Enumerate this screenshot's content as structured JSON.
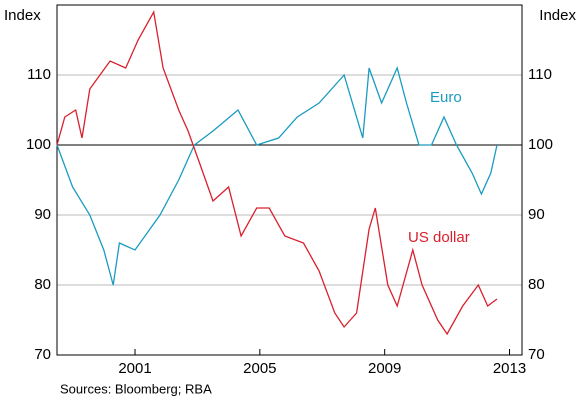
{
  "chart_data": {
    "type": "line",
    "ylabel": "Index",
    "y2label": "Index",
    "source": "Sources: Bloomberg; RBA",
    "xlim": [
      1999,
      2013.9
    ],
    "xticks": [
      {
        "value": 2001.5,
        "label": "2001"
      },
      {
        "value": 2005.5,
        "label": "2005"
      },
      {
        "value": 2009.5,
        "label": "2009"
      },
      {
        "value": 2013.5,
        "label": "2013"
      }
    ],
    "ylim": [
      70,
      120
    ],
    "yticks": [
      70,
      80,
      90,
      100,
      110
    ],
    "reference": 100,
    "grid": true,
    "series": [
      {
        "name": "Euro",
        "color": "#1a9bc0",
        "x": [
          1999,
          1999.5,
          2000.05,
          2000.5,
          2000.8,
          2001.0,
          2001.5,
          2002.3,
          2002.9,
          2003.4,
          2004.0,
          2004.8,
          2005.4,
          2006.1,
          2006.7,
          2007.4,
          2008.2,
          2008.8,
          2009.0,
          2009.4,
          2009.9,
          2010.2,
          2010.6,
          2011.0,
          2011.4,
          2011.8,
          2012.3,
          2012.6,
          2012.9,
          2013.1
        ],
        "values": [
          100,
          94,
          90,
          85,
          80,
          86,
          85,
          90,
          95,
          100,
          102,
          105,
          100,
          101,
          104,
          106,
          110,
          101,
          111,
          106,
          111,
          106,
          100,
          100,
          104,
          100,
          96,
          93,
          96,
          100
        ]
      },
      {
        "name": "US dollar",
        "color": "#d9202e",
        "x": [
          1999,
          1999.25,
          1999.6,
          1999.8,
          2000.05,
          2000.7,
          2001.2,
          2001.6,
          2002.1,
          2002.4,
          2002.9,
          2003.2,
          2003.6,
          2004.0,
          2004.5,
          2004.9,
          2005.4,
          2005.8,
          2006.3,
          2006.9,
          2007.4,
          2007.9,
          2008.2,
          2008.6,
          2009.0,
          2009.2,
          2009.6,
          2009.9,
          2010.4,
          2010.7,
          2011.2,
          2011.5,
          2012.0,
          2012.5,
          2012.8,
          2013.1
        ],
        "values": [
          100,
          104,
          105,
          101,
          108,
          112,
          111,
          115,
          119,
          111,
          105,
          102,
          97,
          92,
          94,
          87,
          91,
          91,
          87,
          86,
          82,
          76,
          74,
          76,
          88,
          91,
          80,
          77,
          85,
          80,
          75,
          73,
          77,
          80,
          77,
          78
        ]
      }
    ]
  }
}
